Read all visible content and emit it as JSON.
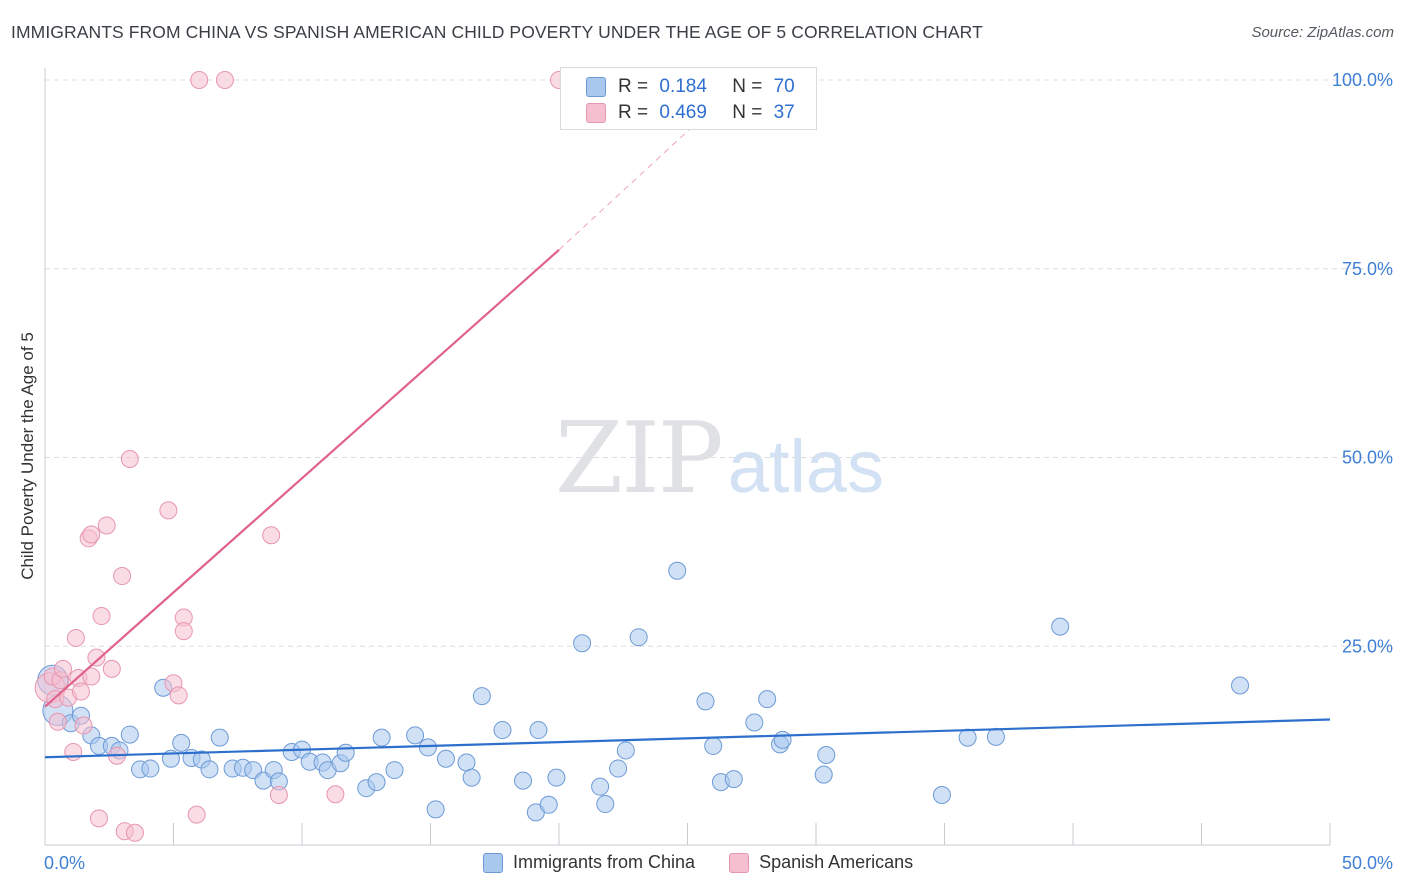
{
  "title": "IMMIGRANTS FROM CHINA VS SPANISH AMERICAN CHILD POVERTY UNDER THE AGE OF 5 CORRELATION CHART",
  "source": "Source: ZipAtlas.com",
  "watermark": {
    "zip": "ZIP",
    "atlas": "atlas"
  },
  "colors": {
    "china_fill": "#a9c8ee",
    "china_stroke": "#6d9ad6",
    "china_line": "#2d6fcc",
    "spanish_fill": "#f5bfd0",
    "spanish_stroke": "#e796b0",
    "spanish_line": "#e0628c",
    "tick_label": "#3f7fd4",
    "grid": "#dcdde1"
  },
  "stats_legend": {
    "rows": [
      {
        "r_label": "R =",
        "r_value": "0.184",
        "n_label": "N =",
        "n_value": "70"
      },
      {
        "r_label": "R =",
        "r_value": "0.469",
        "n_label": "N =",
        "n_value": "37"
      }
    ]
  },
  "bottom_legend": {
    "items": [
      "Immigrants from China",
      "Spanish Americans"
    ]
  },
  "chart_data": {
    "type": "scatter",
    "title": "IMMIGRANTS FROM CHINA VS SPANISH AMERICAN CHILD POVERTY UNDER THE AGE OF 5 CORRELATION CHART",
    "xlabel": "",
    "ylabel": "Child Poverty Under the Age of 5",
    "xlim": [
      0,
      50
    ],
    "ylim": [
      0,
      100
    ],
    "x_tick_labels": [
      "0.0%",
      "50.0%"
    ],
    "y_ticks": [
      25,
      50,
      75,
      100
    ],
    "y_tick_labels": [
      "25.0%",
      "50.0%",
      "75.0%",
      "100.0%"
    ],
    "grid": true,
    "legend_position": "bottom",
    "series": [
      {
        "name": "Immigrants from China",
        "r": 0.184,
        "n": 70,
        "trend": {
          "x": [
            0,
            50
          ],
          "y": [
            10.3,
            15.3
          ]
        },
        "points": [
          {
            "x": 0.3,
            "y": 20.5,
            "big": true
          },
          {
            "x": 0.5,
            "y": 16.5,
            "big": true
          },
          {
            "x": 1.0,
            "y": 14.8
          },
          {
            "x": 1.4,
            "y": 15.8
          },
          {
            "x": 1.8,
            "y": 13.2
          },
          {
            "x": 2.1,
            "y": 11.8
          },
          {
            "x": 2.6,
            "y": 11.8
          },
          {
            "x": 2.9,
            "y": 11.2
          },
          {
            "x": 3.3,
            "y": 13.3
          },
          {
            "x": 3.7,
            "y": 8.7
          },
          {
            "x": 4.1,
            "y": 8.8
          },
          {
            "x": 4.6,
            "y": 19.5
          },
          {
            "x": 4.9,
            "y": 10.1
          },
          {
            "x": 5.3,
            "y": 12.2
          },
          {
            "x": 5.7,
            "y": 10.2
          },
          {
            "x": 6.1,
            "y": 10.0
          },
          {
            "x": 6.4,
            "y": 8.7
          },
          {
            "x": 6.8,
            "y": 12.9
          },
          {
            "x": 7.3,
            "y": 8.8
          },
          {
            "x": 7.7,
            "y": 8.9
          },
          {
            "x": 8.1,
            "y": 8.6
          },
          {
            "x": 8.5,
            "y": 7.2
          },
          {
            "x": 8.9,
            "y": 8.6
          },
          {
            "x": 9.1,
            "y": 7.1
          },
          {
            "x": 9.6,
            "y": 11.0
          },
          {
            "x": 10.0,
            "y": 11.3
          },
          {
            "x": 10.3,
            "y": 9.7
          },
          {
            "x": 10.8,
            "y": 9.6
          },
          {
            "x": 11.0,
            "y": 8.6
          },
          {
            "x": 11.5,
            "y": 9.5
          },
          {
            "x": 11.7,
            "y": 10.9
          },
          {
            "x": 12.5,
            "y": 6.2
          },
          {
            "x": 12.9,
            "y": 7.0
          },
          {
            "x": 13.1,
            "y": 12.9
          },
          {
            "x": 13.6,
            "y": 8.6
          },
          {
            "x": 14.4,
            "y": 13.2
          },
          {
            "x": 14.9,
            "y": 11.6
          },
          {
            "x": 15.2,
            "y": 3.4
          },
          {
            "x": 15.6,
            "y": 10.1
          },
          {
            "x": 16.4,
            "y": 9.6
          },
          {
            "x": 16.6,
            "y": 7.6
          },
          {
            "x": 17.0,
            "y": 18.4
          },
          {
            "x": 17.8,
            "y": 13.9
          },
          {
            "x": 18.6,
            "y": 7.2
          },
          {
            "x": 19.1,
            "y": 3.0
          },
          {
            "x": 19.2,
            "y": 13.9
          },
          {
            "x": 19.6,
            "y": 4.0
          },
          {
            "x": 19.9,
            "y": 7.6
          },
          {
            "x": 20.9,
            "y": 25.4
          },
          {
            "x": 21.6,
            "y": 6.4
          },
          {
            "x": 21.8,
            "y": 4.1
          },
          {
            "x": 22.3,
            "y": 8.8
          },
          {
            "x": 22.6,
            "y": 11.2
          },
          {
            "x": 23.1,
            "y": 26.2
          },
          {
            "x": 24.6,
            "y": 35.0
          },
          {
            "x": 25.7,
            "y": 17.7
          },
          {
            "x": 26.0,
            "y": 11.8
          },
          {
            "x": 26.3,
            "y": 7.0
          },
          {
            "x": 26.8,
            "y": 7.4
          },
          {
            "x": 27.6,
            "y": 14.9
          },
          {
            "x": 28.1,
            "y": 18.0
          },
          {
            "x": 28.6,
            "y": 12.0
          },
          {
            "x": 28.7,
            "y": 12.6
          },
          {
            "x": 30.3,
            "y": 8.0
          },
          {
            "x": 30.4,
            "y": 10.6
          },
          {
            "x": 34.9,
            "y": 5.3
          },
          {
            "x": 35.9,
            "y": 12.9
          },
          {
            "x": 37.0,
            "y": 13.0
          },
          {
            "x": 39.5,
            "y": 27.6
          },
          {
            "x": 46.5,
            "y": 19.8
          }
        ]
      },
      {
        "name": "Spanish Americans",
        "r": 0.469,
        "n": 37,
        "trend": {
          "x": [
            0,
            20
          ],
          "y": [
            17.0,
            77.5
          ]
        },
        "trend_extension": {
          "x": [
            20,
            27
          ],
          "y": [
            77.5,
            99.5
          ]
        },
        "points": [
          {
            "x": 0.2,
            "y": 19.5,
            "big": true
          },
          {
            "x": 0.3,
            "y": 21.0
          },
          {
            "x": 0.4,
            "y": 18.0
          },
          {
            "x": 0.6,
            "y": 20.5
          },
          {
            "x": 0.7,
            "y": 22.0
          },
          {
            "x": 0.9,
            "y": 18.2
          },
          {
            "x": 1.1,
            "y": 11.0
          },
          {
            "x": 1.3,
            "y": 20.8
          },
          {
            "x": 1.2,
            "y": 26.1
          },
          {
            "x": 1.5,
            "y": 14.5
          },
          {
            "x": 1.8,
            "y": 21.0
          },
          {
            "x": 1.7,
            "y": 39.3
          },
          {
            "x": 1.8,
            "y": 39.8
          },
          {
            "x": 2.0,
            "y": 23.5
          },
          {
            "x": 2.1,
            "y": 2.2
          },
          {
            "x": 2.2,
            "y": 29.0
          },
          {
            "x": 2.4,
            "y": 41.0
          },
          {
            "x": 2.6,
            "y": 22.0
          },
          {
            "x": 2.8,
            "y": 10.5
          },
          {
            "x": 3.0,
            "y": 34.3
          },
          {
            "x": 3.1,
            "y": 0.5
          },
          {
            "x": 3.3,
            "y": 49.8
          },
          {
            "x": 3.5,
            "y": 0.3
          },
          {
            "x": 4.8,
            "y": 43.0
          },
          {
            "x": 5.0,
            "y": 20.1
          },
          {
            "x": 5.2,
            "y": 18.5
          },
          {
            "x": 5.4,
            "y": 28.8
          },
          {
            "x": 5.4,
            "y": 27.0
          },
          {
            "x": 5.9,
            "y": 2.7
          },
          {
            "x": 6.0,
            "y": 100.0
          },
          {
            "x": 7.0,
            "y": 100.0
          },
          {
            "x": 8.8,
            "y": 39.7
          },
          {
            "x": 9.1,
            "y": 5.3
          },
          {
            "x": 11.3,
            "y": 5.4
          },
          {
            "x": 20.0,
            "y": 100.0
          },
          {
            "x": 0.5,
            "y": 15.0
          },
          {
            "x": 1.4,
            "y": 19.0
          }
        ]
      }
    ]
  }
}
